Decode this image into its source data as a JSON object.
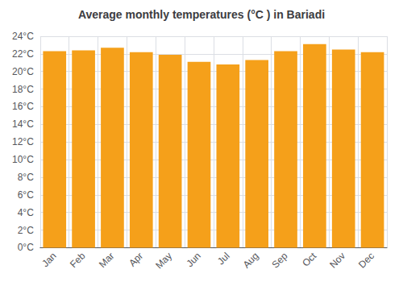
{
  "chart_data": {
    "type": "bar",
    "title": "Average monthly temperatures (°C ) in Bariadi",
    "categories": [
      "Jan",
      "Feb",
      "Mar",
      "Apr",
      "May",
      "Jun",
      "Jul",
      "Aug",
      "Sep",
      "Oct",
      "Nov",
      "Dec"
    ],
    "values": [
      22.3,
      22.4,
      22.7,
      22.2,
      21.9,
      21.1,
      20.8,
      21.3,
      22.3,
      23.1,
      22.5,
      22.2
    ],
    "color": "#F5A01A",
    "ylim": [
      0,
      24
    ],
    "yticks": [
      {
        "value": 0,
        "label": "0°C"
      },
      {
        "value": 2,
        "label": "2°C"
      },
      {
        "value": 4,
        "label": "4°C"
      },
      {
        "value": 6,
        "label": "6°C"
      },
      {
        "value": 8,
        "label": "8°C"
      },
      {
        "value": 10,
        "label": "10°C"
      },
      {
        "value": 12,
        "label": "12°C"
      },
      {
        "value": 14,
        "label": "14°C"
      },
      {
        "value": 16,
        "label": "16°C"
      },
      {
        "value": 18,
        "label": "18°C"
      },
      {
        "value": 20,
        "label": "20°C"
      },
      {
        "value": 22,
        "label": "22°C"
      },
      {
        "value": 24,
        "label": "24°C"
      }
    ],
    "grid": true
  }
}
